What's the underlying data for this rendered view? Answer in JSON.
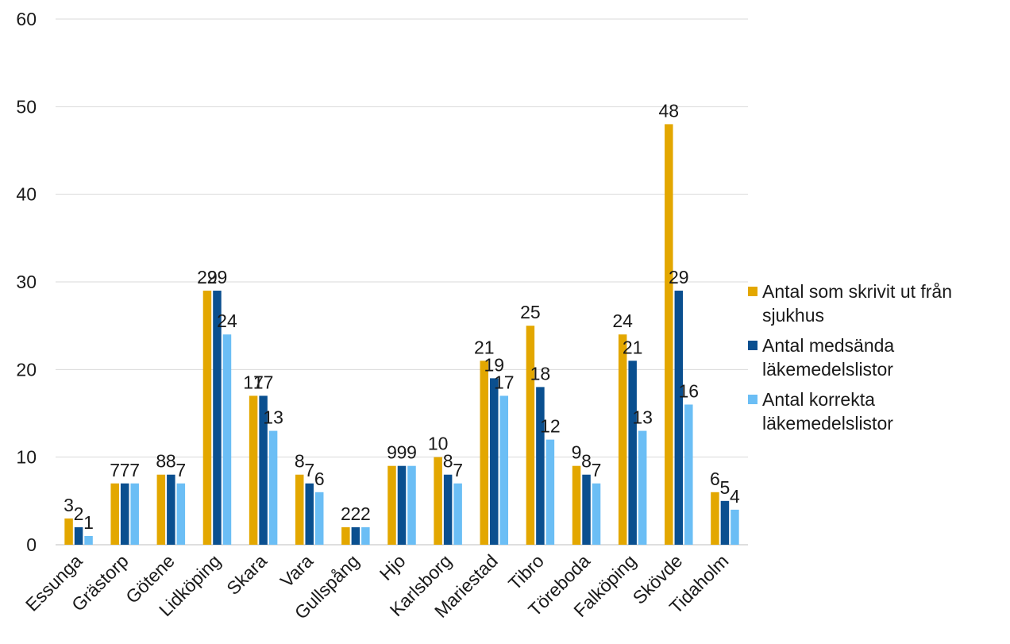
{
  "chart_data": {
    "type": "bar",
    "title": "",
    "xlabel": "",
    "ylabel": "",
    "ylim": [
      0,
      60
    ],
    "yticks": [
      0,
      10,
      20,
      30,
      40,
      50,
      60
    ],
    "grid": true,
    "legend_position": "right",
    "categories": [
      "Essunga",
      "Grästorp",
      "Götene",
      "Lidköping",
      "Skara",
      "Vara",
      "Gullspång",
      "Hjo",
      "Karlsborg",
      "Mariestad",
      "Tibro",
      "Töreboda",
      "Falköping",
      "Skövde",
      "Tidaholm"
    ],
    "series": [
      {
        "name": "Antal som skrivit ut från sjukhus",
        "color": "#E3A700",
        "values": [
          3,
          7,
          8,
          29,
          17,
          8,
          2,
          9,
          10,
          21,
          25,
          9,
          24,
          48,
          6
        ]
      },
      {
        "name": "Antal medsända läkemedelslistor",
        "color": "#0A4F8F",
        "values": [
          2,
          7,
          8,
          29,
          17,
          7,
          2,
          9,
          8,
          19,
          18,
          8,
          21,
          29,
          5
        ]
      },
      {
        "name": "Antal korrekta läkemedelslistor",
        "color": "#6BBEF5",
        "values": [
          1,
          7,
          7,
          24,
          13,
          6,
          2,
          9,
          7,
          17,
          12,
          7,
          13,
          16,
          4
        ]
      }
    ]
  }
}
